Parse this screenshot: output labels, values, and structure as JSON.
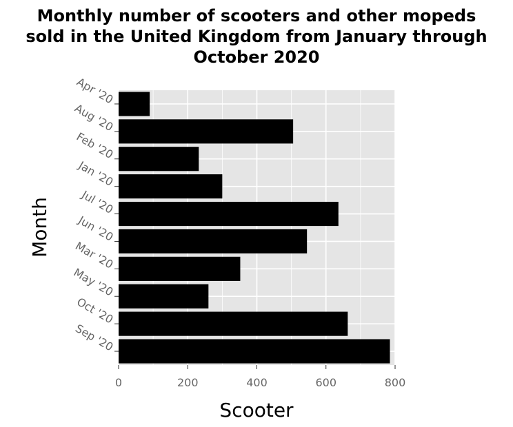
{
  "chart_data": {
    "type": "bar",
    "orientation": "horizontal",
    "title_lines": [
      "Monthly number of scooters and other mopeds",
      "sold in the United Kingdom from January through",
      "October 2020"
    ],
    "xlabel": "Scooter",
    "ylabel": "Month",
    "categories": [
      "Apr '20",
      "Aug '20",
      "Feb '20",
      "Jan '20",
      "Jul '20",
      "Jun '20",
      "Mar '20",
      "May '20",
      "Oct '20",
      "Sep '20"
    ],
    "values": [
      90,
      505,
      232,
      300,
      636,
      545,
      352,
      260,
      663,
      785
    ],
    "xlim": [
      0,
      800
    ],
    "xticks": [
      "0",
      "200",
      "400",
      "600",
      "800"
    ],
    "grid": true,
    "legend": "none",
    "bar_color": "#000000",
    "panel_color": "#e5e5e5"
  }
}
